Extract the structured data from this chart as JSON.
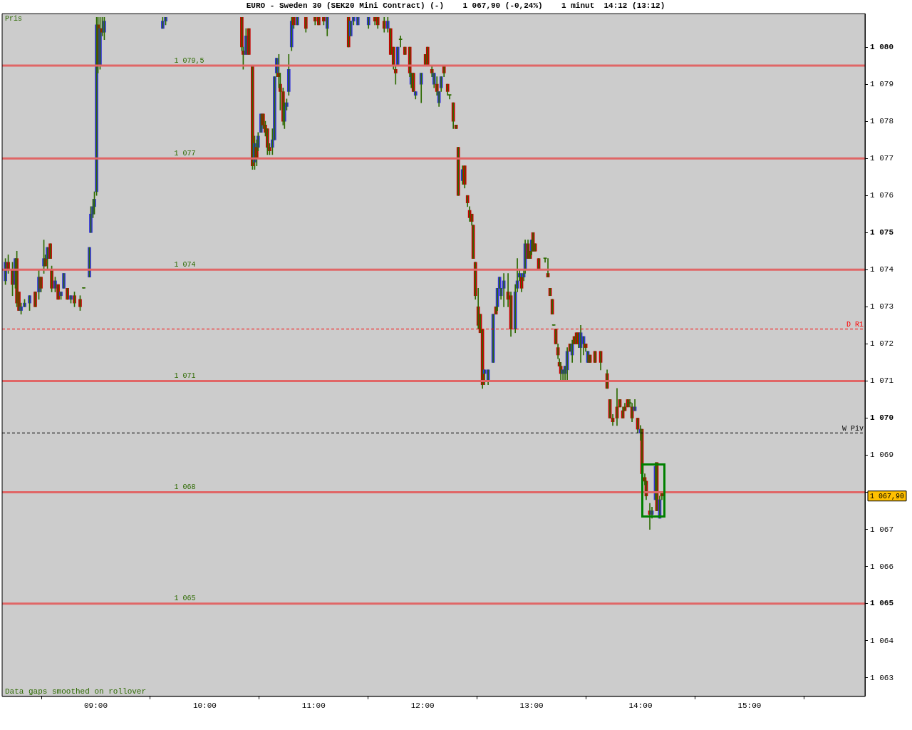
{
  "chart_data": {
    "type": "candlestick",
    "title": "EURO - Sweden 30 (SEK20 Mini Contract) (-)    1 067,90 (-0,24%)    1 minut  14:12 (13:12)",
    "x": [
      8.17,
      8.196,
      8.235,
      8.261,
      8.275,
      8.294,
      8.314,
      8.346,
      8.392,
      8.444,
      8.477,
      8.497,
      8.523,
      8.536,
      8.556,
      8.582,
      8.595,
      8.627,
      8.654,
      8.68,
      8.706,
      8.739,
      8.771,
      8.804,
      8.856,
      8.889,
      8.941,
      8.954,
      8.974,
      8.987,
      9.007,
      9.02,
      9.039,
      9.059,
      9.078,
      9.614,
      9.641,
      10.34,
      10.353,
      10.379,
      10.405,
      10.438,
      10.458,
      10.477,
      10.49,
      10.516,
      10.536,
      10.556,
      10.575,
      10.595,
      10.621,
      10.641,
      10.66,
      10.68,
      10.693,
      10.719,
      10.732,
      10.752,
      10.771,
      10.797,
      10.817,
      10.85,
      10.928,
      11.013,
      11.046,
      11.092,
      11.124,
      11.32,
      11.34,
      11.366,
      11.405,
      11.503,
      11.562,
      11.588,
      11.647,
      11.68,
      11.706,
      11.732,
      11.752,
      11.771,
      11.797,
      11.837,
      11.882,
      11.895,
      11.915,
      11.935,
      11.987,
      12.026,
      12.046,
      12.085,
      12.105,
      12.131,
      12.15,
      12.17,
      12.196,
      12.229,
      12.248,
      12.281,
      12.307,
      12.327,
      12.366,
      12.386,
      12.412,
      12.431,
      12.451,
      12.464,
      12.484,
      12.51,
      12.529,
      12.549,
      12.569,
      12.601,
      12.647,
      12.673,
      12.686,
      12.706,
      12.719,
      12.745,
      12.784,
      12.81,
      12.85,
      12.869,
      12.889,
      12.908,
      12.928,
      12.941,
      12.967,
      12.987,
      13.0,
      13.013,
      13.033,
      13.065,
      13.124,
      13.15,
      13.17,
      13.19,
      13.203,
      13.222,
      13.242,
      13.255,
      13.268,
      13.288,
      13.307,
      13.327,
      13.353,
      13.373,
      13.392,
      13.412,
      13.431,
      13.451,
      13.477,
      13.497,
      13.516,
      13.536,
      13.582,
      13.634,
      13.693,
      13.719,
      13.745,
      13.784,
      13.81,
      13.837,
      13.856,
      13.882,
      13.902,
      13.922,
      13.948,
      13.974,
      14.0,
      14.013,
      14.039,
      14.052,
      14.085,
      14.105,
      14.137,
      14.15,
      14.176,
      14.196
    ],
    "series": [
      {
        "color": "#2d6a00",
        "ohlc": [
          [
            1073.7,
            1074.3,
            1073.6,
            1074.2
          ],
          [
            1074.2,
            1074.4,
            1073.9,
            1074.0
          ],
          [
            1074.0,
            1074.2,
            1073.3,
            1073.6
          ],
          [
            1073.6,
            1074.3,
            1073.5,
            1074.3
          ],
          [
            1074.3,
            1074.5,
            1073.0,
            1073.1
          ],
          [
            1073.4,
            1073.4,
            1072.9,
            1072.9
          ],
          [
            1072.9,
            1073.1,
            1072.8,
            1073.0
          ],
          [
            1073.0,
            1073.2,
            1073.0,
            1073.1
          ],
          [
            1073.1,
            1073.3,
            1072.9,
            1073.3
          ],
          [
            1073.4,
            1073.4,
            1073.0,
            1073.0
          ],
          [
            1073.4,
            1074.0,
            1073.2,
            1073.8
          ],
          [
            1073.8,
            1073.8,
            1073.4,
            1073.5
          ],
          [
            1074.1,
            1074.8,
            1073.9,
            1074.3
          ],
          [
            1074.3,
            1074.4,
            1074.1,
            1074.1
          ],
          [
            1074.3,
            1074.6,
            1074.0,
            1074.6
          ],
          [
            1074.7,
            1074.7,
            1074.3,
            1074.3
          ],
          [
            1074.0,
            1074.1,
            1073.4,
            1073.5
          ],
          [
            1073.5,
            1073.8,
            1073.4,
            1073.7
          ],
          [
            1073.6,
            1073.6,
            1073.2,
            1073.2
          ],
          [
            1073.3,
            1073.4,
            1073.2,
            1073.4
          ],
          [
            1073.5,
            1073.9,
            1073.5,
            1073.9
          ],
          [
            1073.5,
            1073.5,
            1073.2,
            1073.2
          ],
          [
            1073.2,
            1073.3,
            1073.1,
            1073.3
          ],
          [
            1073.3,
            1073.4,
            1073.0,
            1073.1
          ],
          [
            1073.2,
            1073.3,
            1072.9,
            1073.0
          ],
          [
            1073.5,
            1073.5,
            1073.5,
            1073.5
          ],
          [
            1073.8,
            1074.6,
            1073.8,
            1074.6
          ],
          [
            1075.0,
            1075.7,
            1075.0,
            1075.5
          ],
          [
            1075.5,
            1075.9,
            1075.4,
            1075.7
          ],
          [
            1075.7,
            1076.1,
            1075.5,
            1075.9
          ],
          [
            1076.1,
            1080.8,
            1076.0,
            1080.6
          ],
          [
            1080.6,
            1080.8,
            1079.3,
            1079.5
          ],
          [
            1079.5,
            1080.8,
            1079.4,
            1080.5
          ],
          [
            1080.5,
            1080.8,
            1080.3,
            1080.4
          ],
          [
            1080.4,
            1080.8,
            1080.2,
            1080.7
          ],
          [
            1080.5,
            1080.8,
            1080.5,
            1080.7
          ],
          [
            1080.7,
            1080.8,
            1080.6,
            1080.8
          ],
          [
            1080.8,
            1080.8,
            1079.9,
            1080.0
          ],
          [
            1079.9,
            1080.0,
            1079.4,
            1079.8
          ],
          [
            1079.8,
            1080.5,
            1079.8,
            1080.3
          ],
          [
            1080.5,
            1080.5,
            1079.8,
            1079.8
          ],
          [
            1079.5,
            1079.5,
            1076.7,
            1076.8
          ],
          [
            1076.9,
            1077.6,
            1076.7,
            1077.4
          ],
          [
            1077.3,
            1077.5,
            1076.8,
            1077.0
          ],
          [
            1077.3,
            1077.7,
            1077.2,
            1077.6
          ],
          [
            1077.7,
            1078.2,
            1077.7,
            1078.2
          ],
          [
            1078.2,
            1078.2,
            1077.8,
            1077.9
          ],
          [
            1077.9,
            1078.0,
            1077.6,
            1077.7
          ],
          [
            1077.8,
            1077.8,
            1077.1,
            1077.3
          ],
          [
            1077.3,
            1077.4,
            1077.1,
            1077.2
          ],
          [
            1077.3,
            1077.8,
            1077.1,
            1077.5
          ],
          [
            1077.5,
            1079.2,
            1077.5,
            1079.2
          ],
          [
            1079.3,
            1079.7,
            1079.2,
            1079.7
          ],
          [
            1079.3,
            1079.8,
            1078.9,
            1079.2
          ],
          [
            1079.0,
            1079.3,
            1078.3,
            1078.8
          ],
          [
            1078.8,
            1078.9,
            1077.9,
            1078.0
          ],
          [
            1078.0,
            1078.5,
            1077.8,
            1078.4
          ],
          [
            1078.4,
            1078.6,
            1078.3,
            1078.5
          ],
          [
            1078.8,
            1079.8,
            1078.7,
            1079.4
          ],
          [
            1080.0,
            1080.8,
            1079.9,
            1080.7
          ],
          [
            1080.8,
            1080.8,
            1080.5,
            1080.6
          ],
          [
            1080.6,
            1080.8,
            1080.6,
            1080.8
          ],
          [
            1080.8,
            1080.8,
            1080.4,
            1080.5
          ],
          [
            1080.8,
            1080.8,
            1080.6,
            1080.7
          ],
          [
            1080.8,
            1080.8,
            1080.6,
            1080.6
          ],
          [
            1080.8,
            1080.8,
            1080.6,
            1080.7
          ],
          [
            1080.5,
            1080.8,
            1080.3,
            1080.8
          ],
          [
            1080.8,
            1080.8,
            1080.0,
            1080.0
          ],
          [
            1080.3,
            1080.7,
            1080.3,
            1080.7
          ],
          [
            1080.7,
            1080.8,
            1080.6,
            1080.8
          ],
          [
            1080.6,
            1080.8,
            1080.6,
            1080.8
          ],
          [
            1080.6,
            1080.8,
            1080.5,
            1080.8
          ],
          [
            1080.8,
            1080.8,
            1080.6,
            1080.7
          ],
          [
            1080.8,
            1080.8,
            1080.5,
            1080.6
          ],
          [
            1080.7,
            1080.8,
            1080.4,
            1080.5
          ],
          [
            1080.5,
            1080.8,
            1080.4,
            1080.7
          ],
          [
            1080.5,
            1080.5,
            1079.8,
            1079.8
          ],
          [
            1080.0,
            1080.0,
            1079.4,
            1079.5
          ],
          [
            1079.4,
            1079.5,
            1079.0,
            1079.3
          ],
          [
            1079.5,
            1080.0,
            1079.5,
            1080.0
          ],
          [
            1080.2,
            1080.3,
            1080.0,
            1080.2
          ],
          [
            1080.0,
            1080.0,
            1079.8,
            1079.8
          ],
          [
            1080.0,
            1080.0,
            1079.2,
            1079.3
          ],
          [
            1079.0,
            1079.3,
            1078.9,
            1079.3
          ],
          [
            1079.3,
            1079.3,
            1078.8,
            1078.8
          ],
          [
            1078.7,
            1078.8,
            1078.6,
            1078.8
          ],
          [
            1079.0,
            1079.3,
            1078.5,
            1079.3
          ],
          [
            1079.8,
            1079.8,
            1079.5,
            1079.5
          ],
          [
            1080.0,
            1080.0,
            1079.5,
            1079.5
          ],
          [
            1079.4,
            1079.5,
            1079.2,
            1079.3
          ],
          [
            1079.0,
            1079.3,
            1078.9,
            1079.3
          ],
          [
            1079.0,
            1079.2,
            1078.7,
            1078.8
          ],
          [
            1078.5,
            1078.8,
            1078.4,
            1078.8
          ],
          [
            1078.9,
            1079.2,
            1078.8,
            1079.2
          ],
          [
            1079.5,
            1079.5,
            1079.2,
            1079.3
          ],
          [
            1079.0,
            1079.0,
            1078.7,
            1078.8
          ],
          [
            1078.7,
            1078.7,
            1078.6,
            1078.7
          ],
          [
            1078.5,
            1078.5,
            1077.8,
            1078.0
          ],
          [
            1077.9,
            1077.9,
            1077.8,
            1077.8
          ],
          [
            1077.3,
            1077.3,
            1076.0,
            1076.0
          ],
          [
            1076.4,
            1076.8,
            1076.3,
            1076.7
          ],
          [
            1076.8,
            1076.8,
            1076.2,
            1076.3
          ],
          [
            1076.0,
            1076.0,
            1075.7,
            1075.8
          ],
          [
            1075.6,
            1075.7,
            1075.3,
            1075.4
          ],
          [
            1075.5,
            1075.5,
            1075.2,
            1075.3
          ],
          [
            1075.2,
            1075.2,
            1074.3,
            1074.3
          ],
          [
            1074.2,
            1074.2,
            1073.2,
            1073.3
          ],
          [
            1073.0,
            1073.5,
            1072.4,
            1072.5
          ],
          [
            1072.8,
            1072.8,
            1072.3,
            1072.3
          ],
          [
            1072.4,
            1072.4,
            1070.8,
            1070.9
          ],
          [
            1071.2,
            1071.3,
            1070.9,
            1071.3
          ],
          [
            1071.0,
            1071.3,
            1070.9,
            1071.3
          ],
          [
            1071.5,
            1072.8,
            1071.5,
            1072.8
          ],
          [
            1073.0,
            1073.0,
            1072.8,
            1072.8
          ],
          [
            1073.0,
            1073.5,
            1072.9,
            1073.5
          ],
          [
            1073.5,
            1073.8,
            1073.5,
            1073.8
          ],
          [
            1073.3,
            1073.5,
            1073.2,
            1073.5
          ],
          [
            1073.5,
            1073.9,
            1073.0,
            1073.7
          ],
          [
            1073.4,
            1073.9,
            1073.0,
            1073.2
          ],
          [
            1073.3,
            1073.4,
            1072.2,
            1072.4
          ],
          [
            1072.4,
            1073.6,
            1072.3,
            1073.4
          ],
          [
            1073.5,
            1074.3,
            1073.4,
            1073.7
          ],
          [
            1073.8,
            1074.0,
            1073.7,
            1073.9
          ],
          [
            1073.8,
            1073.9,
            1073.4,
            1073.5
          ],
          [
            1073.8,
            1074.0,
            1073.7,
            1073.9
          ],
          [
            1074.0,
            1074.8,
            1073.9,
            1074.7
          ],
          [
            1074.7,
            1074.8,
            1074.3,
            1074.3
          ],
          [
            1074.5,
            1074.5,
            1074.3,
            1074.3
          ],
          [
            1074.5,
            1074.8,
            1074.4,
            1074.8
          ],
          [
            1075.0,
            1075.0,
            1074.5,
            1074.5
          ],
          [
            1074.7,
            1074.7,
            1074.5,
            1074.5
          ],
          [
            1074.3,
            1074.3,
            1074.0,
            1074.0
          ],
          [
            1074.3,
            1074.3,
            1074.2,
            1074.3
          ],
          [
            1073.9,
            1074.3,
            1073.8,
            1073.8
          ],
          [
            1073.5,
            1073.5,
            1073.3,
            1073.3
          ],
          [
            1073.2,
            1073.2,
            1072.8,
            1072.8
          ],
          [
            1072.5,
            1072.5,
            1072.5,
            1072.5
          ],
          [
            1072.4,
            1072.4,
            1072.0,
            1072.0
          ],
          [
            1071.9,
            1072.0,
            1071.6,
            1071.7
          ],
          [
            1071.5,
            1071.6,
            1071.4,
            1071.4
          ],
          [
            1071.4,
            1071.5,
            1071.0,
            1071.2
          ],
          [
            1071.2,
            1071.3,
            1071.0,
            1071.3
          ],
          [
            1071.2,
            1071.4,
            1071.0,
            1071.4
          ],
          [
            1071.3,
            1071.9,
            1071.0,
            1071.8
          ],
          [
            1072.0,
            1072.0,
            1071.8,
            1071.8
          ],
          [
            1071.7,
            1072.1,
            1071.5,
            1072.0
          ],
          [
            1072.2,
            1072.2,
            1072.0,
            1072.0
          ],
          [
            1072.3,
            1072.3,
            1072.0,
            1072.0
          ],
          [
            1072.3,
            1072.3,
            1071.9,
            1072.0
          ],
          [
            1071.9,
            1072.5,
            1071.5,
            1072.3
          ],
          [
            1072.0,
            1072.2,
            1071.7,
            1072.2
          ],
          [
            1072.0,
            1072.0,
            1071.8,
            1071.9
          ],
          [
            1071.5,
            1071.8,
            1071.5,
            1071.8
          ],
          [
            1071.7,
            1071.7,
            1071.5,
            1071.5
          ],
          [
            1071.8,
            1071.8,
            1071.5,
            1071.5
          ],
          [
            1071.8,
            1071.8,
            1071.3,
            1071.5
          ],
          [
            1071.2,
            1071.3,
            1070.8,
            1070.8
          ],
          [
            1070.5,
            1070.5,
            1070.0,
            1070.0
          ],
          [
            1070.0,
            1070.1,
            1069.8,
            1069.9
          ],
          [
            1070.3,
            1070.8,
            1069.8,
            1070.0
          ],
          [
            1070.5,
            1070.5,
            1070.3,
            1070.3
          ],
          [
            1070.2,
            1070.3,
            1070.0,
            1070.0
          ],
          [
            1070.3,
            1070.4,
            1070.2,
            1070.2
          ],
          [
            1070.5,
            1070.5,
            1070.3,
            1070.3
          ],
          [
            1070.4,
            1070.5,
            1070.3,
            1070.4
          ],
          [
            1070.3,
            1070.4,
            1069.9,
            1070.0
          ],
          [
            1070.2,
            1070.5,
            1070.2,
            1070.3
          ],
          [
            1070.0,
            1070.0,
            1069.6,
            1069.7
          ],
          [
            1069.6,
            1069.8,
            1069.4,
            1069.7
          ],
          [
            1069.7,
            1069.7,
            1068.5,
            1068.5
          ],
          [
            1068.4,
            1068.5,
            1068.2,
            1068.3
          ],
          [
            1068.3,
            1068.3,
            1067.8,
            1067.9
          ],
          [
            1067.5,
            1067.7,
            1067.0,
            1067.4
          ],
          [
            1067.4,
            1067.6,
            1067.3,
            1067.5
          ],
          [
            1067.8,
            1068.8,
            1067.8,
            1068.7
          ],
          [
            1068.8,
            1068.8,
            1067.5,
            1067.5
          ],
          [
            1067.3,
            1067.9,
            1067.3,
            1067.8
          ],
          [
            1068.0,
            1068.0,
            1067.8,
            1067.9
          ]
        ],
        "colors": [
          "#3232dc",
          "#c80000",
          "#c80000",
          "#3232dc",
          "#c80000",
          "#c80000",
          "#3232dc",
          "#3232dc",
          "#3232dc",
          "#c80000",
          "#3232dc",
          "#c80000",
          "#3232dc",
          "#c80000",
          "#3232dc",
          "#c80000",
          "#c80000",
          "#3232dc",
          "#c80000",
          "#3232dc",
          "#3232dc",
          "#c80000",
          "#3232dc",
          "#c80000",
          "#c80000",
          "#2d6a00",
          "#3232dc",
          "#3232dc",
          "#3232dc",
          "#3232dc",
          "#3232dc",
          "#c80000",
          "#3232dc",
          "#c80000",
          "#3232dc",
          "#3232dc",
          "#3232dc",
          "#c80000",
          "#c80000",
          "#3232dc",
          "#c80000",
          "#c80000",
          "#3232dc",
          "#c80000",
          "#3232dc",
          "#3232dc",
          "#c80000",
          "#c80000",
          "#c80000",
          "#c80000",
          "#3232dc",
          "#3232dc",
          "#3232dc",
          "#c80000",
          "#c80000",
          "#c80000",
          "#3232dc",
          "#3232dc",
          "#3232dc",
          "#3232dc",
          "#c80000",
          "#3232dc",
          "#c80000",
          "#c80000",
          "#c80000",
          "#c80000",
          "#3232dc",
          "#c80000",
          "#3232dc",
          "#3232dc",
          "#3232dc",
          "#3232dc",
          "#c80000",
          "#c80000",
          "#c80000",
          "#3232dc",
          "#c80000",
          "#c80000",
          "#c80000",
          "#3232dc",
          "#2d6a00",
          "#c80000",
          "#c80000",
          "#3232dc",
          "#c80000",
          "#3232dc",
          "#3232dc",
          "#c80000",
          "#c80000",
          "#c80000",
          "#3232dc",
          "#c80000",
          "#3232dc",
          "#3232dc",
          "#c80000",
          "#c80000",
          "#2d6a00",
          "#c80000",
          "#c80000",
          "#c80000",
          "#3232dc",
          "#c80000",
          "#c80000",
          "#c80000",
          "#c80000",
          "#c80000",
          "#c80000",
          "#c80000",
          "#c80000",
          "#c80000",
          "#3232dc",
          "#3232dc",
          "#3232dc",
          "#c80000",
          "#3232dc",
          "#3232dc",
          "#3232dc",
          "#3232dc",
          "#c80000",
          "#c80000",
          "#3232dc",
          "#3232dc",
          "#3232dc",
          "#c80000",
          "#3232dc",
          "#3232dc",
          "#c80000",
          "#c80000",
          "#3232dc",
          "#c80000",
          "#c80000",
          "#c80000",
          "#2d6a00",
          "#c80000",
          "#c80000",
          "#c80000",
          "#2d6a00",
          "#c80000",
          "#c80000",
          "#c80000",
          "#c80000",
          "#3232dc",
          "#3232dc",
          "#3232dc",
          "#c80000",
          "#3232dc",
          "#c80000",
          "#c80000",
          "#c80000",
          "#3232dc",
          "#3232dc",
          "#c80000",
          "#3232dc",
          "#c80000",
          "#c80000",
          "#c80000",
          "#c80000",
          "#c80000",
          "#c80000",
          "#c80000",
          "#c80000",
          "#c80000",
          "#c80000",
          "#c80000",
          "#2d6a00",
          "#c80000",
          "#3232dc",
          "#c80000",
          "#3232dc",
          "#c80000",
          "#c80000",
          "#c80000",
          "#c80000",
          "#3232dc",
          "#3232dc",
          "#c80000",
          "#3232dc",
          "#c80000"
        ]
      }
    ],
    "xlim": [
      8.14,
      16.06
    ],
    "xticks": [
      {
        "value": 9,
        "label": "09:00"
      },
      {
        "value": 10,
        "label": "10:00"
      },
      {
        "value": 11,
        "label": "11:00"
      },
      {
        "value": 12,
        "label": "12:00"
      },
      {
        "value": 13,
        "label": "13:00"
      },
      {
        "value": 14,
        "label": "14:00"
      },
      {
        "value": 15,
        "label": "15:00"
      }
    ],
    "ylim": [
      1062.5,
      1080.9
    ],
    "yticks": [
      {
        "value": 1063,
        "label": "1 063"
      },
      {
        "value": 1064,
        "label": "1 064"
      },
      {
        "value": 1065,
        "label": "1 065"
      },
      {
        "value": 1066,
        "label": "1 066"
      },
      {
        "value": 1067,
        "label": "1 067"
      },
      {
        "value": 1068,
        "label": null
      },
      {
        "value": 1069,
        "label": "1 069"
      },
      {
        "value": 1070,
        "label": "1 070"
      },
      {
        "value": 1071,
        "label": "1 071"
      },
      {
        "value": 1072,
        "label": "1 072"
      },
      {
        "value": 1073,
        "label": "1 073"
      },
      {
        "value": 1074,
        "label": "1 074"
      },
      {
        "value": 1075,
        "label": "1 075"
      },
      {
        "value": 1076,
        "label": "1 076"
      },
      {
        "value": 1077,
        "label": "1 077"
      },
      {
        "value": 1078,
        "label": "1 078"
      },
      {
        "value": 1079,
        "label": "1 079"
      },
      {
        "value": 1080,
        "label": "1 080"
      }
    ],
    "ref_lines": [
      {
        "axis": "y",
        "value": 1079.5,
        "label": "1 079,5",
        "color": "#e06666"
      },
      {
        "axis": "y",
        "value": 1077,
        "label": "1 077",
        "color": "#e06666"
      },
      {
        "axis": "y",
        "value": 1074,
        "label": "1 074",
        "color": "#e06666"
      },
      {
        "axis": "y",
        "value": 1071,
        "label": "1 071",
        "color": "#e06666"
      },
      {
        "axis": "y",
        "value": 1068,
        "label": "1 068",
        "color": "#e06666"
      },
      {
        "axis": "y",
        "value": 1065,
        "label": "1 065",
        "color": "#e06666"
      },
      {
        "axis": "y",
        "value": 1072.4,
        "label": "D R1",
        "color": "#ff0000",
        "line_style": "dashed"
      },
      {
        "axis": "y",
        "value": 1069.6,
        "label": "W Piv",
        "color": "#000000",
        "line_style": "dashed"
      }
    ],
    "annotations": [
      "Pris",
      "1 067,90",
      "Data gaps smoothed on rollover"
    ],
    "grid": false,
    "legend": false
  }
}
